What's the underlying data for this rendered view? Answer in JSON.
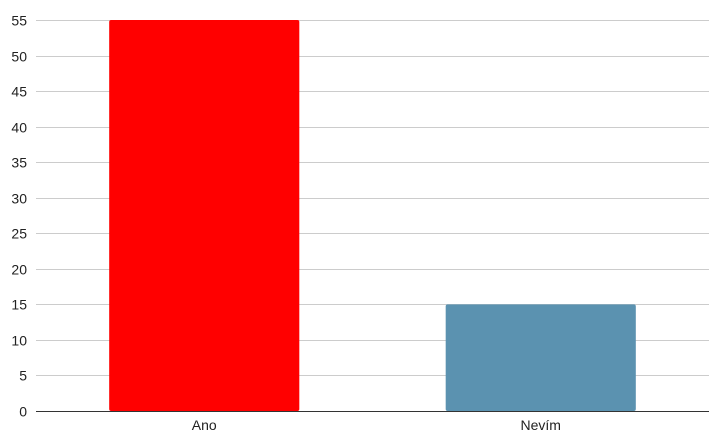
{
  "chart_data": {
    "type": "bar",
    "title": "",
    "xlabel": "",
    "ylabel": "",
    "categories": [
      "Ano",
      "Nevím"
    ],
    "values": [
      55,
      15
    ],
    "colors": [
      "#ff0000",
      "#5b92b0"
    ],
    "ylim": [
      0,
      55
    ],
    "yticks": [
      0,
      5,
      10,
      15,
      20,
      25,
      30,
      35,
      40,
      45,
      50,
      55
    ],
    "grid": true,
    "legend": "none"
  }
}
